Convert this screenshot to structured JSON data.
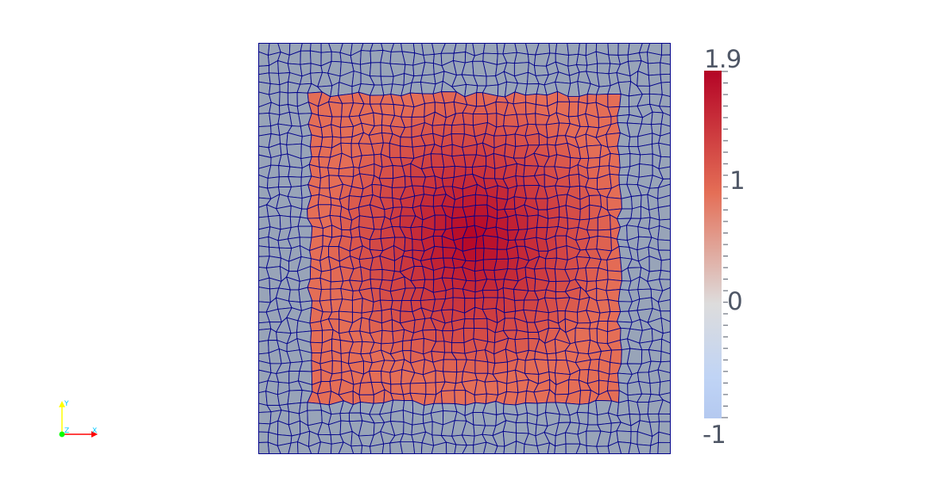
{
  "render_view": {
    "mesh": {
      "cols": 40,
      "rows": 40,
      "edge_color": "#00008b",
      "background_value_color": "#98a4b8",
      "value_range": [
        -1,
        1.9
      ],
      "inner_square_value": 1.0,
      "peak_value": 1.9
    },
    "colorbar": {
      "max_label": "1.9",
      "mid_label": "1",
      "zero_label": "0",
      "min_label": "-1",
      "colors": {
        "top": "#b40426",
        "upper": "#e46e56",
        "middle": "#dddcdc",
        "lower": "#c0d4f5",
        "bottom": "#b4c9f0"
      }
    },
    "orientation_axes": {
      "y_label": "Y",
      "x_label": "X",
      "z_label": "Z",
      "y_color": "#ffff00",
      "x_color": "#ff0000",
      "z_color": "#00ff00",
      "label_color": "#00c8ff"
    }
  }
}
